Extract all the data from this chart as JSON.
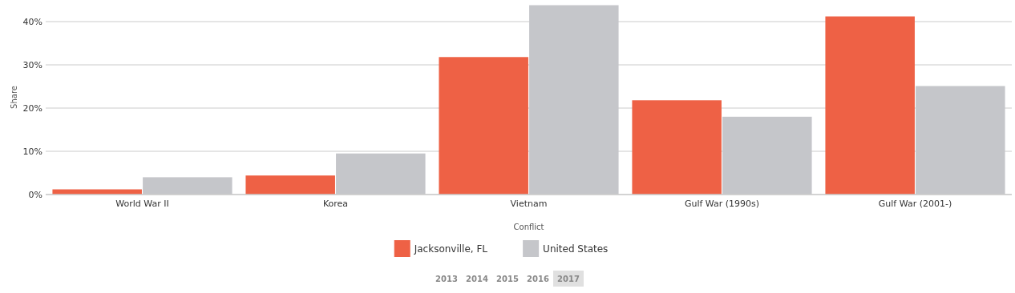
{
  "chart_data": {
    "type": "bar",
    "xlabel": "Conflict",
    "ylabel": "Share",
    "categories": [
      "World War II",
      "Korea",
      "Vietnam",
      "Gulf War (1990s)",
      "Gulf War (2001-)"
    ],
    "series": [
      {
        "name": "Jacksonville, FL",
        "color": "#ee6145",
        "values": [
          1.2,
          4.4,
          31.8,
          21.8,
          41.2
        ]
      },
      {
        "name": "United States",
        "color": "#c5c6ca",
        "values": [
          4.0,
          9.5,
          43.8,
          18.0,
          25.1
        ]
      }
    ],
    "ylim": [
      0,
      45
    ],
    "yticks": [
      {
        "value": 0,
        "label": "0%"
      },
      {
        "value": 10,
        "label": "10%"
      },
      {
        "value": 20,
        "label": "20%"
      },
      {
        "value": 30,
        "label": "30%"
      },
      {
        "value": 40,
        "label": "40%"
      }
    ],
    "grid": "y",
    "legend": "bottom",
    "annotations": [
      "2013",
      "2014",
      "2015",
      "2016",
      "2017"
    ]
  }
}
